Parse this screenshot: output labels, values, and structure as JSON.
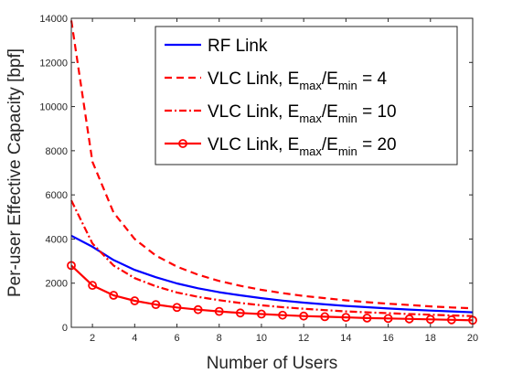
{
  "chart_data": {
    "type": "line",
    "xlabel": "Number of Users",
    "ylabel": "Per-user Effective Capacity [bpf]",
    "xlim": [
      1,
      20
    ],
    "ylim": [
      0,
      14000
    ],
    "xticks": [
      "2",
      "4",
      "6",
      "8",
      "10",
      "12",
      "14",
      "16",
      "18",
      "20"
    ],
    "yticks": [
      "0",
      "2000",
      "4000",
      "6000",
      "8000",
      "10000",
      "12000",
      "14000"
    ],
    "grid": false,
    "legend_position": "top-right",
    "x": [
      1,
      2,
      3,
      4,
      5,
      6,
      7,
      8,
      9,
      10,
      11,
      12,
      13,
      14,
      15,
      16,
      17,
      18,
      19,
      20
    ],
    "series": [
      {
        "key": "rf",
        "name": "RF Link",
        "color": "#0000ff",
        "dash": "solid",
        "marker": "none",
        "values": [
          4150,
          3650,
          3050,
          2600,
          2270,
          1990,
          1770,
          1590,
          1450,
          1320,
          1210,
          1120,
          1040,
          970,
          910,
          855,
          805,
          760,
          720,
          680
        ]
      },
      {
        "key": "vlc4",
        "name": "VLC Link, E",
        "sub1": "max",
        "mid": "/E",
        "sub2": "min",
        "suffix": " = 4",
        "color": "#ff0000",
        "dash": "dashed",
        "marker": "none",
        "values": [
          13900,
          7500,
          5200,
          4000,
          3250,
          2750,
          2380,
          2100,
          1880,
          1700,
          1550,
          1420,
          1320,
          1220,
          1140,
          1070,
          1010,
          950,
          900,
          860
        ]
      },
      {
        "key": "vlc10",
        "name": "VLC Link, E",
        "sub1": "max",
        "mid": "/E",
        "sub2": "min",
        "suffix": " = 10",
        "color": "#ff0000",
        "dash": "dashdot",
        "marker": "none",
        "values": [
          5750,
          3800,
          2800,
          2230,
          1860,
          1580,
          1380,
          1230,
          1100,
          1000,
          910,
          840,
          780,
          720,
          680,
          640,
          600,
          570,
          540,
          510
        ]
      },
      {
        "key": "vlc20",
        "name": "VLC Link, E",
        "sub1": "max",
        "mid": "/E",
        "sub2": "min",
        "suffix": " = 20",
        "color": "#ff0000",
        "dash": "solid",
        "marker": "circle",
        "values": [
          2800,
          1900,
          1450,
          1200,
          1030,
          900,
          800,
          720,
          650,
          600,
          550,
          510,
          480,
          450,
          420,
          400,
          380,
          360,
          340,
          320
        ]
      }
    ]
  }
}
